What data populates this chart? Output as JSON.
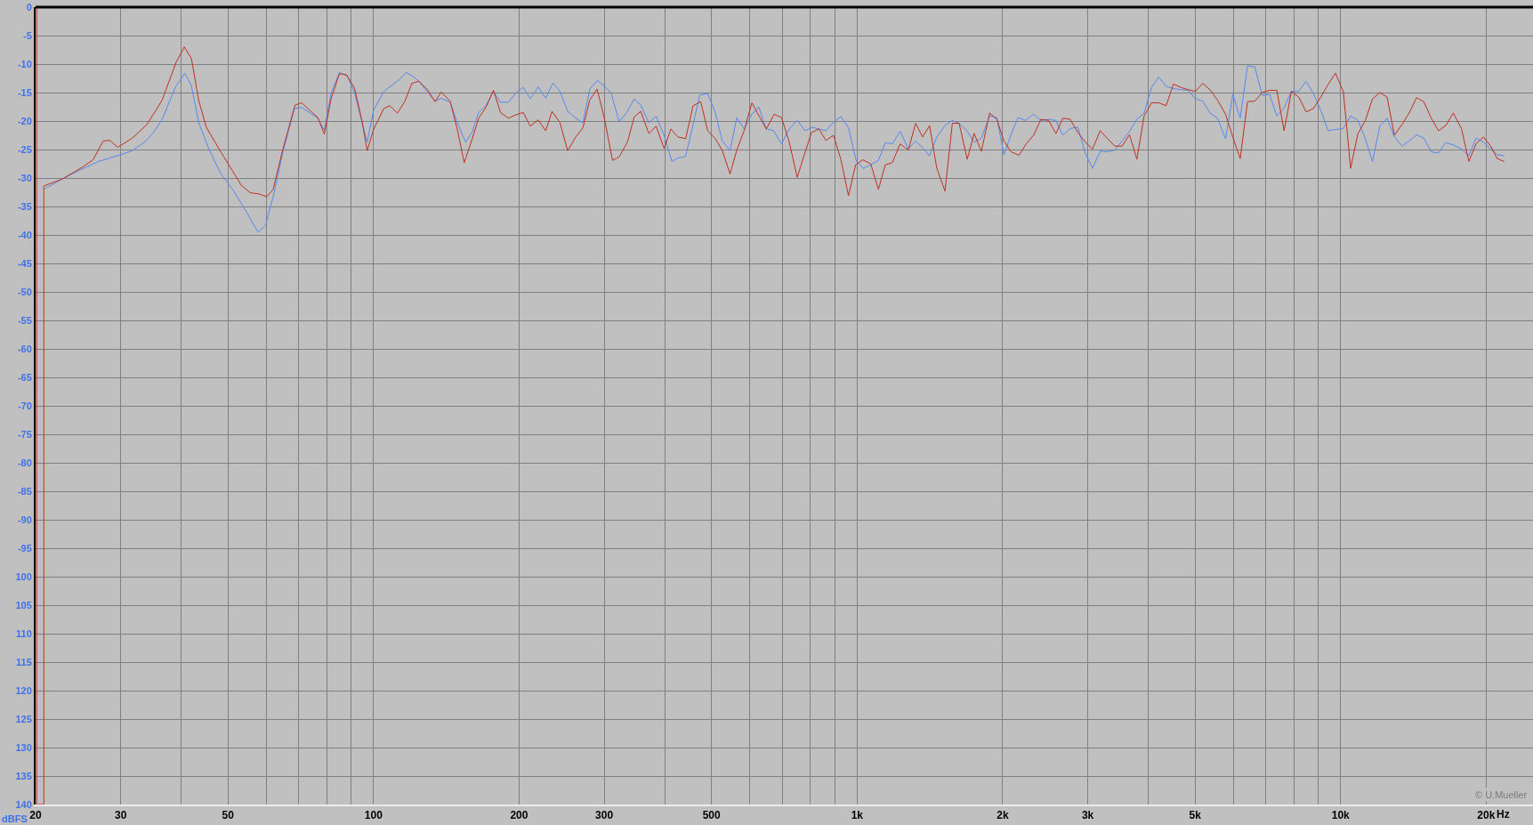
{
  "chart_data": {
    "type": "line",
    "xlabel": "Hz",
    "ylabel": "dBFS",
    "log": "x",
    "grid": true,
    "xlim": [
      20,
      25000
    ],
    "xticks": [
      20,
      30,
      {
        "value": 40,
        "label": null
      },
      50,
      {
        "value": 60,
        "label": null
      },
      {
        "value": 70,
        "label": null
      },
      {
        "value": 80,
        "label": null
      },
      {
        "value": 90,
        "label": null
      },
      100,
      200,
      300,
      {
        "value": 400,
        "label": null
      },
      500,
      {
        "value": 600,
        "label": null
      },
      {
        "value": 700,
        "label": null
      },
      {
        "value": 800,
        "label": null
      },
      {
        "value": 900,
        "label": null
      },
      {
        "value": 1000,
        "label": "1k"
      },
      {
        "value": 2000,
        "label": "2k"
      },
      {
        "value": 3000,
        "label": "3k"
      },
      {
        "value": 4000,
        "label": null
      },
      {
        "value": 5000,
        "label": "5k"
      },
      {
        "value": 6000,
        "label": null
      },
      {
        "value": 7000,
        "label": null
      },
      {
        "value": 8000,
        "label": null
      },
      {
        "value": 9000,
        "label": null
      },
      {
        "value": 10000,
        "label": "10k"
      },
      {
        "value": 20000,
        "label": "20k"
      }
    ],
    "ylim": [
      -140,
      0
    ],
    "yticks": [
      0,
      -5,
      -10,
      -15,
      -20,
      -25,
      -30,
      -35,
      -40,
      -45,
      -50,
      -55,
      -60,
      -65,
      -70,
      -75,
      -80,
      -85,
      -90,
      -95,
      {
        "value": -100,
        "label": "100"
      },
      {
        "value": -105,
        "label": "105"
      },
      {
        "value": -110,
        "label": "110"
      },
      {
        "value": -115,
        "label": "115"
      },
      {
        "value": -120,
        "label": "120"
      },
      {
        "value": -125,
        "label": "125"
      },
      {
        "value": -130,
        "label": "130"
      },
      {
        "value": -135,
        "label": "135"
      },
      {
        "value": -140,
        "label": "140"
      }
    ],
    "annotations": [
      "© U.Mueller"
    ],
    "series": [
      {
        "color": "#5588ee",
        "x": [
          20.9,
          22.8,
          24.7,
          27.0,
          30.0,
          31.7,
          33.6,
          35.0,
          36.5,
          38.9,
          40.7,
          42.0,
          43.5,
          45.7,
          48.3,
          51.1,
          54.1,
          57.7,
          59.8,
          62.2,
          64.9,
          68.6,
          71.0,
          76.7,
          79.1,
          81.7,
          85.0,
          88.3,
          91.4,
          94.7,
          97,
          100,
          105,
          108,
          112,
          117,
          120,
          124,
          129,
          134,
          138,
          144,
          149,
          155,
          160,
          165,
          171,
          177,
          183,
          190,
          197,
          204,
          211,
          219,
          227,
          235,
          243,
          252,
          262,
          271,
          280,
          290,
          300,
          310,
          322,
          334,
          346,
          357,
          371,
          384,
          399,
          414,
          426,
          442,
          458,
          473,
          491,
          509,
          526,
          546,
          564,
          584,
          606,
          626,
          649,
          672,
          698,
          724,
          752,
          781,
          808,
          834,
          862,
          894,
          926,
          960,
          997,
          1030,
          1067,
          1107,
          1144,
          1183,
          1228,
          1276,
          1322,
          1366,
          1412,
          1462,
          1520,
          1574,
          1626,
          1690,
          1746,
          1808,
          1880,
          1946,
          2012,
          2082,
          2152,
          2230,
          2318,
          2400,
          2490,
          2578,
          2664,
          2758,
          2862,
          2964,
          3068,
          3184,
          3296,
          3412,
          3534,
          3660,
          3790,
          3924,
          4064,
          4208,
          4356,
          4512,
          4672,
          4838,
          5008,
          5186,
          5370,
          5562,
          5782,
          5986,
          6200,
          6420,
          6648,
          6884,
          7128,
          7380,
          7642,
          7914,
          8194,
          8486,
          8786,
          9098,
          9422,
          9756,
          10130,
          10490,
          10860,
          11250,
          11640,
          12060,
          12480,
          12920,
          13400,
          13860,
          14360,
          14860,
          15400,
          15940,
          16500,
          17100,
          17780,
          18420,
          19060,
          19740,
          20440,
          21080,
          21800
        ],
        "values": [
          -31.9,
          -30.1,
          -28.6,
          -27.1,
          -25.9,
          -25.2,
          -23.7,
          -22.1,
          -19.8,
          -14.1,
          -11.6,
          -13.8,
          -20.3,
          -25.0,
          -29.2,
          -32.0,
          -35.4,
          -39.5,
          -38.3,
          -32.8,
          -25.5,
          -17.8,
          -17.6,
          -19.5,
          -21.6,
          -15.1,
          -11.5,
          -12.1,
          -15.1,
          -20.3,
          -23.7,
          -18.1,
          -14.8,
          -14.0,
          -13.0,
          -11.5,
          -12.0,
          -13.0,
          -14.8,
          -16.5,
          -16.0,
          -16.7,
          -20.3,
          -23.7,
          -21.9,
          -18.5,
          -17.2,
          -14.8,
          -16.7,
          -16.7,
          -15.1,
          -14.1,
          -16.1,
          -14.0,
          -16.0,
          -13.3,
          -14.8,
          -18.3,
          -19.5,
          -20.3,
          -14.4,
          -12.9,
          -13.8,
          -15.1,
          -20.1,
          -18.5,
          -16.1,
          -17.2,
          -20.3,
          -19.2,
          -22.5,
          -27.1,
          -26.5,
          -26.2,
          -20.6,
          -15.4,
          -15.2,
          -18.5,
          -23.4,
          -25.2,
          -19.4,
          -21.4,
          -18.8,
          -17.5,
          -21.4,
          -21.7,
          -24.0,
          -21.4,
          -19.9,
          -21.7,
          -21.1,
          -21.4,
          -21.7,
          -20.2,
          -19.2,
          -21.2,
          -27.1,
          -28.3,
          -27.7,
          -26.9,
          -23.8,
          -24.0,
          -21.8,
          -24.9,
          -23.5,
          -24.7,
          -26.1,
          -22.8,
          -20.8,
          -19.9,
          -20.4,
          -21.8,
          -23.7,
          -23.0,
          -19.1,
          -19.4,
          -25.9,
          -22.4,
          -19.4,
          -19.9,
          -18.8,
          -19.9,
          -19.7,
          -19.9,
          -22.5,
          -21.3,
          -21.1,
          -25.6,
          -28.3,
          -25.3,
          -25.4,
          -25.1,
          -23.5,
          -21.8,
          -19.7,
          -18.6,
          -14.1,
          -12.3,
          -13.9,
          -14.3,
          -14.5,
          -14.6,
          -16.1,
          -16.5,
          -18.6,
          -19.5,
          -23.1,
          -15.3,
          -19.5,
          -10.3,
          -10.5,
          -15.5,
          -15.3,
          -19.1,
          -17.7,
          -14.8,
          -14.8,
          -13.0,
          -15.2,
          -18.1,
          -21.7,
          -21.5,
          -21.3,
          -19.1,
          -19.9,
          -23.1,
          -27.1,
          -20.8,
          -19.5,
          -22.8,
          -24.4,
          -23.5,
          -22.4,
          -23.0,
          -25.4,
          -25.6,
          -23.8,
          -24.2,
          -24.9,
          -26.1,
          -23.0,
          -23.7,
          -24.9,
          -25.9,
          -26.1
        ]
      },
      {
        "color": "#c03020",
        "x": [
          20.1,
          20.1,
          20.8,
          20.8,
          22.7,
          25.0,
          26.3,
          27.6,
          28.5,
          29.6,
          31.7,
          34.0,
          36.5,
          39.1,
          40.6,
          42.0,
          43.5,
          45.1,
          48.3,
          53.3,
          55.6,
          58.0,
          60.1,
          62.0,
          64.9,
          68.8,
          71.0,
          76.7,
          79.1,
          81.7,
          85.0,
          88.0,
          91.4,
          94.7,
          97,
          100,
          105,
          108,
          112,
          116,
          120,
          124,
          129,
          134,
          138,
          144,
          149,
          154,
          160,
          165,
          171,
          177,
          183,
          190,
          197,
          204,
          211,
          219,
          227,
          234,
          243,
          252,
          262,
          271,
          280,
          290,
          300,
          312,
          322,
          335,
          346,
          357,
          371,
          384,
          399,
          412,
          426,
          442,
          458,
          475,
          491,
          509,
          526,
          546,
          564,
          584,
          606,
          629,
          649,
          674,
          698,
          724,
          752,
          778,
          805,
          834,
          862,
          894,
          926,
          960,
          993,
          1027,
          1067,
          1107,
          1144,
          1183,
          1228,
          1276,
          1322,
          1366,
          1412,
          1462,
          1520,
          1574,
          1626,
          1690,
          1746,
          1808,
          1880,
          1946,
          2012,
          2082,
          2162,
          2238,
          2318,
          2400,
          2490,
          2578,
          2664,
          2758,
          2862,
          2964,
          3068,
          3184,
          3296,
          3412,
          3534,
          3660,
          3790,
          3924,
          4064,
          4208,
          4356,
          4512,
          4672,
          4838,
          5008,
          5186,
          5370,
          5562,
          5782,
          5986,
          6200,
          6420,
          6648,
          6884,
          7128,
          7380,
          7642,
          7914,
          8194,
          8486,
          8786,
          9098,
          9422,
          9756,
          10130,
          10490,
          10860,
          11250,
          11640,
          12060,
          12480,
          12920,
          13400,
          13860,
          14360,
          14860,
          15400,
          15940,
          16500,
          17100,
          17780,
          18420,
          19060,
          19740,
          20440,
          21080,
          21800
        ],
        "values": [
          0,
          -140,
          -140,
          -31.4,
          -30.2,
          -28.1,
          -26.8,
          -23.5,
          -23.4,
          -24.6,
          -23.0,
          -20.6,
          -16.4,
          -9.6,
          -7.0,
          -9.0,
          -16.4,
          -21.1,
          -25.4,
          -31.3,
          -32.6,
          -32.8,
          -33.3,
          -32.0,
          -25.0,
          -17.2,
          -16.8,
          -19.4,
          -22.3,
          -16.1,
          -11.7,
          -11.9,
          -14.3,
          -20.1,
          -25.2,
          -21.5,
          -17.8,
          -17.3,
          -18.6,
          -16.6,
          -13.4,
          -13.0,
          -14.4,
          -16.6,
          -14.9,
          -16.5,
          -21.5,
          -27.3,
          -23.1,
          -19.5,
          -17.5,
          -14.6,
          -18.5,
          -19.5,
          -18.9,
          -18.5,
          -20.9,
          -19.8,
          -21.7,
          -18.3,
          -20.3,
          -25.2,
          -22.8,
          -21.2,
          -16.3,
          -14.4,
          -19.4,
          -26.9,
          -26.3,
          -23.7,
          -19.3,
          -18.3,
          -22.2,
          -20.9,
          -24.8,
          -21.4,
          -22.8,
          -23.1,
          -17.3,
          -16.6,
          -21.7,
          -23.1,
          -25.1,
          -29.3,
          -25.1,
          -21.7,
          -16.8,
          -19.3,
          -21.4,
          -18.8,
          -19.4,
          -23.7,
          -29.9,
          -25.9,
          -22.0,
          -21.4,
          -23.4,
          -22.5,
          -26.8,
          -33.1,
          -27.7,
          -26.8,
          -27.5,
          -32.0,
          -27.7,
          -27.3,
          -24.0,
          -25.1,
          -20.4,
          -22.8,
          -20.8,
          -28.3,
          -32.3,
          -20.4,
          -20.4,
          -26.7,
          -22.2,
          -25.3,
          -18.6,
          -19.7,
          -23.5,
          -25.4,
          -26.0,
          -24.0,
          -22.5,
          -19.7,
          -19.9,
          -22.2,
          -19.5,
          -19.7,
          -22.0,
          -23.7,
          -24.9,
          -21.7,
          -23.1,
          -24.4,
          -24.4,
          -22.4,
          -26.7,
          -19.1,
          -16.8,
          -16.8,
          -17.3,
          -13.5,
          -14.1,
          -14.5,
          -14.8,
          -13.4,
          -14.5,
          -16.3,
          -18.8,
          -22.8,
          -26.6,
          -16.6,
          -16.5,
          -15.0,
          -14.6,
          -14.6,
          -21.7,
          -14.8,
          -15.8,
          -18.4,
          -17.8,
          -15.8,
          -13.6,
          -11.6,
          -14.8,
          -28.3,
          -22.2,
          -19.9,
          -16.1,
          -15.0,
          -15.8,
          -22.5,
          -20.6,
          -18.6,
          -15.9,
          -16.6,
          -19.5,
          -21.7,
          -20.8,
          -18.6,
          -21.3,
          -27.1,
          -24.0,
          -22.8,
          -24.4,
          -26.6,
          -27.1
        ]
      }
    ]
  }
}
